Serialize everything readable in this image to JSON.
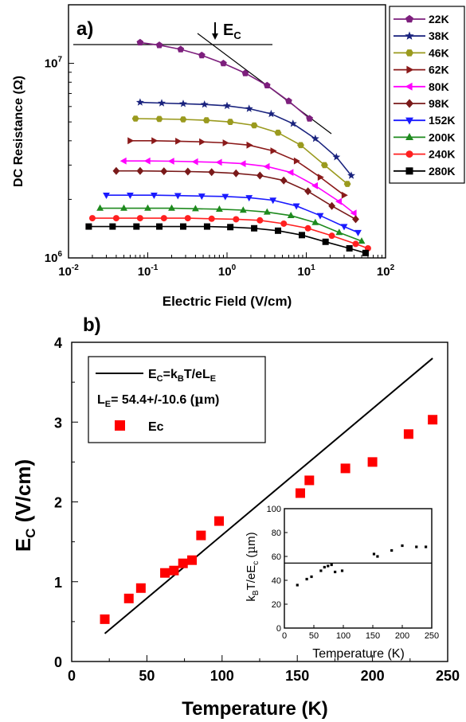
{
  "chart_data": [
    {
      "type": "line",
      "panel_label": "a)",
      "xlabel": "Electric Field (V/cm)",
      "ylabel": "DC Resistance (Ω)",
      "xscale": "log",
      "yscale": "log",
      "xlim": [
        0.01,
        100
      ],
      "ylim": [
        1000000,
        20000000
      ],
      "x_ticks": [
        {
          "v": 0.01,
          "b": "10",
          "e": "-2"
        },
        {
          "v": 0.1,
          "b": "10",
          "e": "-1"
        },
        {
          "v": 1,
          "b": "10",
          "e": "0"
        },
        {
          "v": 10,
          "b": "10",
          "e": "1"
        },
        {
          "v": 100,
          "b": "10",
          "e": "2"
        }
      ],
      "y_ticks": [
        {
          "v": 1000000,
          "b": "10",
          "e": "6"
        },
        {
          "v": 10000000,
          "b": "10",
          "e": "7"
        }
      ],
      "annotation": {
        "main": "E",
        "sub": "C"
      },
      "legend_position": "right (outside)",
      "grid": false,
      "series": [
        {
          "name": "22K",
          "color": "#7d1f7d",
          "marker": "pentagon",
          "x": [
            0.08,
            0.14,
            0.26,
            0.48,
            0.9,
            1.7,
            3.2,
            6,
            11
          ],
          "y": [
            12800000,
            12400000,
            11800000,
            11000000,
            10000000,
            8900000,
            7700000,
            6400000,
            5200000
          ]
        },
        {
          "name": "38K",
          "color": "#1a237e",
          "marker": "star",
          "x": [
            0.08,
            0.15,
            0.28,
            0.52,
            1,
            1.9,
            3.6,
            6.8,
            13,
            24,
            37
          ],
          "y": [
            6300000,
            6250000,
            6200000,
            6150000,
            6050000,
            5850000,
            5500000,
            4900000,
            4100000,
            3300000,
            2650000
          ]
        },
        {
          "name": "46K",
          "color": "#9a9a1e",
          "marker": "hexagon",
          "x": [
            0.07,
            0.14,
            0.28,
            0.55,
            1.1,
            2.2,
            4.4,
            8.5,
            17,
            33
          ],
          "y": [
            5200000,
            5180000,
            5150000,
            5100000,
            5000000,
            4800000,
            4400000,
            3800000,
            3000000,
            2400000
          ]
        },
        {
          "name": "62K",
          "color": "#8b1a1a",
          "marker": "triangle-right",
          "x": [
            0.06,
            0.12,
            0.24,
            0.48,
            0.95,
            1.9,
            3.8,
            7.5,
            15,
            30
          ],
          "y": [
            4000000,
            4000000,
            3980000,
            3950000,
            3900000,
            3800000,
            3550000,
            3150000,
            2600000,
            2100000
          ]
        },
        {
          "name": "80K",
          "color": "#ff00ff",
          "marker": "triangle-left",
          "x": [
            0.05,
            0.1,
            0.2,
            0.4,
            0.8,
            1.6,
            3.2,
            6.4,
            13,
            26,
            40
          ],
          "y": [
            3150000,
            3150000,
            3140000,
            3120000,
            3100000,
            3050000,
            2950000,
            2750000,
            2350000,
            1950000,
            1700000
          ]
        },
        {
          "name": "98K",
          "color": "#7a1a1a",
          "marker": "diamond",
          "x": [
            0.04,
            0.08,
            0.16,
            0.32,
            0.64,
            1.3,
            2.6,
            5.2,
            10.5,
            21,
            42
          ],
          "y": [
            2800000,
            2800000,
            2790000,
            2780000,
            2760000,
            2720000,
            2650000,
            2500000,
            2200000,
            1850000,
            1580000
          ]
        },
        {
          "name": "152K",
          "color": "#1a1aff",
          "marker": "triangle-down",
          "x": [
            0.03,
            0.06,
            0.12,
            0.24,
            0.48,
            0.95,
            1.9,
            3.8,
            7.5,
            15,
            30,
            45
          ],
          "y": [
            2100000,
            2100000,
            2100000,
            2090000,
            2080000,
            2070000,
            2040000,
            1980000,
            1850000,
            1650000,
            1450000,
            1350000
          ]
        },
        {
          "name": "200K",
          "color": "#1e8a1e",
          "marker": "triangle-up",
          "x": [
            0.025,
            0.05,
            0.1,
            0.2,
            0.4,
            0.8,
            1.6,
            3.2,
            6.4,
            13,
            26,
            50
          ],
          "y": [
            1800000,
            1800000,
            1800000,
            1800000,
            1790000,
            1780000,
            1760000,
            1720000,
            1650000,
            1520000,
            1350000,
            1220000
          ]
        },
        {
          "name": "240K",
          "color": "#ff2020",
          "marker": "circle",
          "x": [
            0.02,
            0.04,
            0.08,
            0.16,
            0.32,
            0.64,
            1.3,
            2.6,
            5.2,
            10.5,
            21,
            42,
            60
          ],
          "y": [
            1600000,
            1600000,
            1600000,
            1600000,
            1600000,
            1590000,
            1580000,
            1560000,
            1500000,
            1420000,
            1300000,
            1180000,
            1120000
          ]
        },
        {
          "name": "280K",
          "color": "#000000",
          "marker": "square",
          "x": [
            0.018,
            0.036,
            0.072,
            0.14,
            0.28,
            0.56,
            1.1,
            2.2,
            4.4,
            8.8,
            17.5,
            35,
            56
          ],
          "y": [
            1450000,
            1450000,
            1450000,
            1450000,
            1450000,
            1450000,
            1440000,
            1420000,
            1380000,
            1310000,
            1210000,
            1120000,
            1060000
          ]
        }
      ]
    },
    {
      "type": "scatter",
      "panel_label": "b)",
      "xlabel": "Temperature (K)",
      "ylabel": {
        "main": "E",
        "sub": "C",
        "rest": " (V/cm)"
      },
      "xlim": [
        0,
        250
      ],
      "ylim": [
        0,
        4
      ],
      "x_ticks": [
        "0",
        "50",
        "100",
        "150",
        "200",
        "250"
      ],
      "y_ticks": [
        "0",
        "1",
        "2",
        "3",
        "4"
      ],
      "grid": false,
      "legend_position": "top-left",
      "legend": {
        "line_label": {
          "p1": "E",
          "s1": "C",
          "p2": "=k",
          "s2": "B",
          "p3": "T/eL",
          "s3": "E"
        },
        "fit_label": {
          "p1": "L",
          "s1": "E",
          "p2": "= 54.4+/-10.6 (",
          "mu": "µ",
          "p3": "m)"
        },
        "marker_label": "Ec"
      },
      "fit_line": {
        "x": [
          22,
          240
        ],
        "y": [
          0.35,
          3.8
        ]
      },
      "series": [
        {
          "name": "Ec",
          "color": "#ff0000",
          "marker": "square",
          "x": [
            22,
            38,
            46,
            62,
            68,
            74,
            80,
            86,
            98,
            152,
            158,
            182,
            200,
            224,
            240
          ],
          "y": [
            0.53,
            0.79,
            0.92,
            1.11,
            1.14,
            1.23,
            1.27,
            1.58,
            1.76,
            2.11,
            2.27,
            2.42,
            2.5,
            2.85,
            3.03
          ]
        }
      ],
      "inset": {
        "type": "scatter",
        "xlabel": "Temperature (K)",
        "ylabel": {
          "p1": "k",
          "s1": "B",
          "p2": "T/eE",
          "s2": "c",
          "p3": " (",
          "mu": "µ",
          "p4": "m)"
        },
        "xlim": [
          0,
          250
        ],
        "ylim": [
          0,
          100
        ],
        "x_ticks": [
          "0",
          "50",
          "100",
          "150",
          "200",
          "250"
        ],
        "y_ticks": [
          "0",
          "20",
          "40",
          "60",
          "80",
          "100"
        ],
        "reference_line_y": 54.4,
        "series": [
          {
            "name": "",
            "color": "#000000",
            "marker": "square",
            "x": [
              22,
              38,
              46,
              62,
              68,
              74,
              80,
              86,
              98,
              152,
              158,
              182,
              200,
              224,
              240
            ],
            "y": [
              36,
              41,
              43,
              48,
              51,
              52,
              53,
              47,
              48,
              62,
              60,
              65,
              69,
              68,
              68
            ]
          }
        ]
      }
    }
  ]
}
